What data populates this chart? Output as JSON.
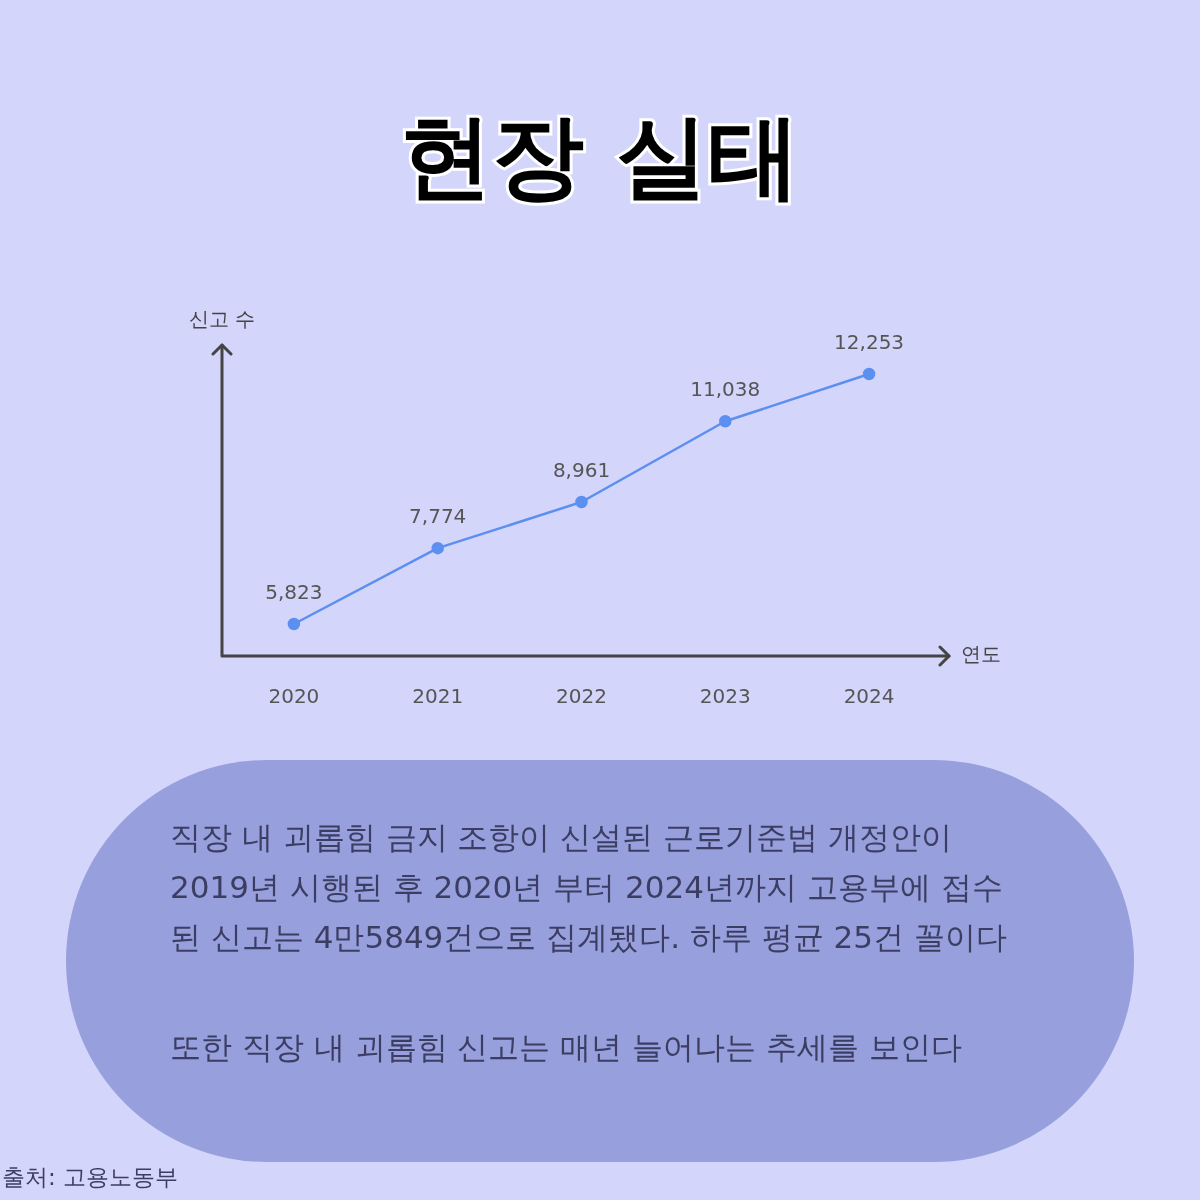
{
  "chart_data": {
    "type": "line",
    "title": "현장 실태",
    "ylabel": "신고 수",
    "xlabel": "연도",
    "categories": [
      "2020",
      "2021",
      "2022",
      "2023",
      "2024"
    ],
    "series": [
      {
        "color": "#5b8ff0",
        "values": [
          5823,
          7774,
          8961,
          11038,
          12253
        ],
        "value_labels": [
          "5,823",
          "7,774",
          "8,961",
          "11,038",
          "12,253"
        ]
      }
    ],
    "tick_labels": "x",
    "grid": false,
    "legend": false,
    "marker": "circle",
    "line_style": "solid",
    "annotations": [
      "직장 내 괴롭힘 금지 조항이 신설된 근로기준법 개정안이 2019년 시행된 후 2020년 부터 2024년까지 고용부에 접수된 신고는 4만5849건으로 집계됐다. 하루 평균 25건 꼴이다",
      "또한 직장 내 괴롭힘 신고는 매년 늘어나는 추세를 보인다",
      "출처: 고용노동부"
    ]
  }
}
